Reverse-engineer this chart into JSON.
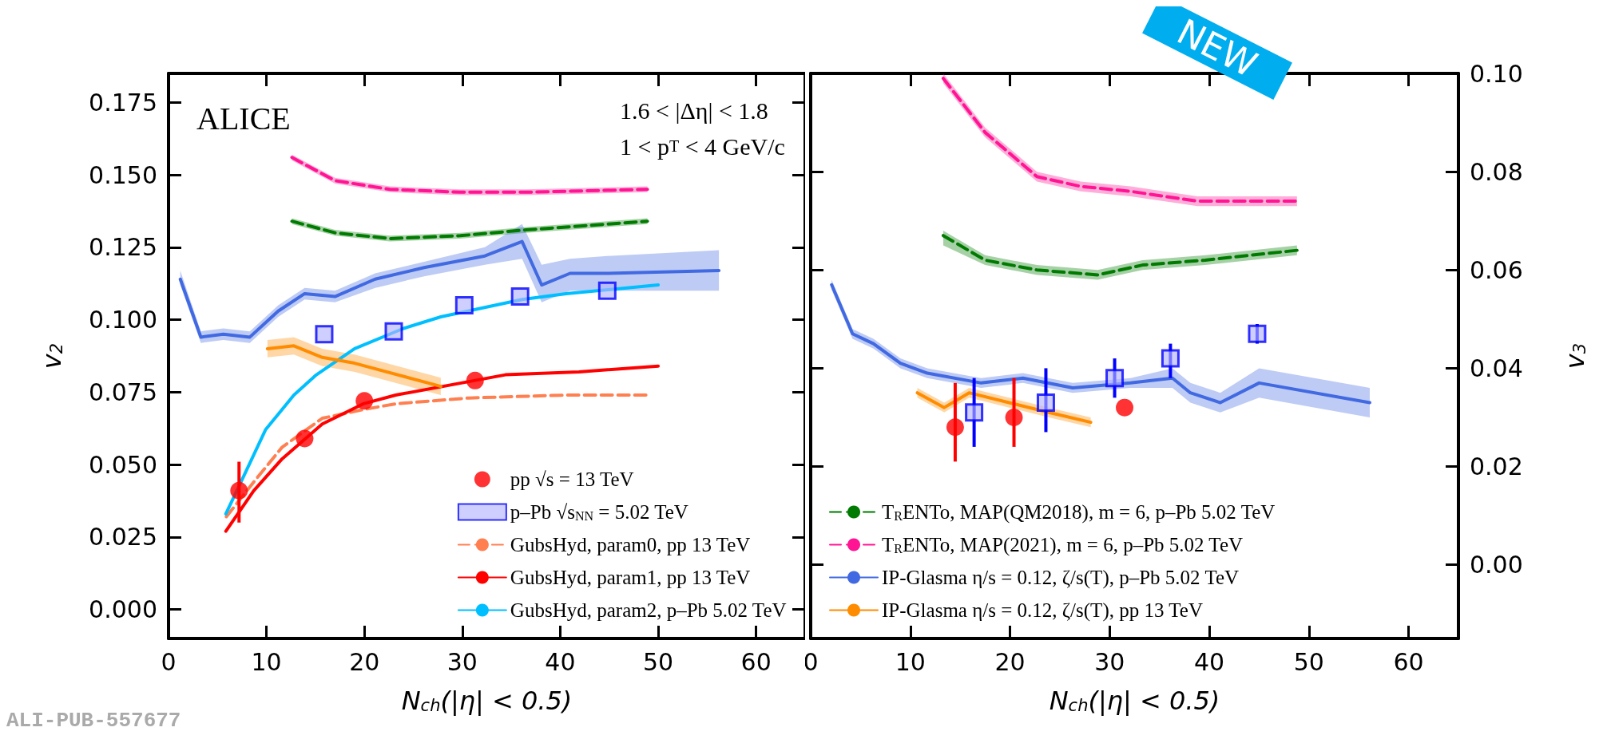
{
  "chart_data": [
    {
      "type": "line",
      "xlabel": "N$_{ch}$(|η| < 0.5)",
      "ylabel": "v$_{2}$",
      "xlim": [
        0,
        65
      ],
      "xticks": [
        0,
        10,
        20,
        30,
        40,
        50,
        60
      ],
      "ylim": [
        -0.01,
        0.185
      ],
      "yticks": [
        {
          "value": 0,
          "label": "0.000"
        },
        0.025,
        {
          "value": 0.05,
          "label": "0.050"
        },
        0.075,
        {
          "value": 0.1,
          "label": "0.100"
        },
        0.125,
        {
          "value": 0.15,
          "label": "0.150"
        },
        0.175
      ],
      "legend": "bottom right",
      "annotations": [
        "ALICE",
        "1.6 < |Δη| < 1.8",
        "1 < p$_{T}$ < 4 GeV/c",
        "ALI-PUB-557677"
      ],
      "series": [
        {
          "name": "pp √s = 13 TeV",
          "type": "scatter",
          "marker": "circle",
          "color": "#ff0000",
          "x": [
            7.2,
            13.9,
            20.0,
            31.3
          ],
          "values": [
            0.041,
            0.059,
            0.072,
            0.079
          ],
          "errors": [
            [
              0.03,
              0.051
            ],
            null,
            null,
            null
          ]
        },
        {
          "name": "p–Pb √s$_{NN}$ = 5.02 TeV",
          "type": "scatter",
          "marker": "square",
          "color": "#0000ff",
          "x": [
            15.9,
            23.0,
            30.2,
            35.9,
            44.8
          ],
          "values": [
            0.095,
            0.096,
            0.105,
            0.108,
            0.11
          ]
        },
        {
          "name": "GubsHyd, param0, pp 13 TeV",
          "type": "line",
          "marker": "none",
          "line_style": "dashed",
          "color": "#ff7f50",
          "x": [
            5.9,
            8.7,
            11.6,
            15.7,
            19.9,
            23.2,
            30.7,
            40.6,
            49.3
          ],
          "values": [
            0.032,
            0.044,
            0.056,
            0.066,
            0.069,
            0.071,
            0.073,
            0.074,
            0.074
          ]
        },
        {
          "name": "GubsHyd, param1, pp 13 TeV",
          "type": "line",
          "marker": "none",
          "line_style": "solid",
          "color": "#ff0000",
          "x": [
            5.85,
            8.7,
            11.6,
            15.7,
            19.9,
            23.2,
            34.4,
            41.9,
            50.0
          ],
          "values": [
            0.027,
            0.041,
            0.052,
            0.064,
            0.071,
            0.074,
            0.081,
            0.082,
            0.084
          ]
        },
        {
          "name": "GubsHyd, param2, p–Pb 5.02 TeV",
          "type": "line",
          "marker": "none",
          "line_style": "solid",
          "color": "#00bfff",
          "x": [
            5.85,
            7.4,
            9.9,
            12.8,
            15.1,
            19.0,
            24.0,
            27.8,
            36.1,
            40.6,
            50.0
          ],
          "values": [
            0.033,
            0.044,
            0.062,
            0.074,
            0.081,
            0.09,
            0.097,
            0.101,
            0.107,
            0.109,
            0.112
          ]
        },
        {
          "type": "line",
          "marker": "none",
          "line_style": "dashed",
          "color": "#007a00",
          "x": [
            12.6,
            17.0,
            22.6,
            29.8,
            36.5,
            48.9
          ],
          "values": [
            0.134,
            0.13,
            0.128,
            0.129,
            0.131,
            0.134
          ],
          "lower": [
            0.133,
            0.129,
            0.127,
            0.128,
            0.13,
            0.133
          ],
          "upper": [
            0.135,
            0.131,
            0.129,
            0.13,
            0.132,
            0.135
          ]
        },
        {
          "type": "line",
          "marker": "none",
          "line_style": "dashed",
          "color": "#ff1493",
          "x": [
            12.6,
            17.0,
            22.6,
            29.8,
            36.5,
            48.9
          ],
          "values": [
            0.156,
            0.148,
            0.145,
            0.144,
            0.144,
            0.145
          ],
          "lower": [
            0.155,
            0.147,
            0.144,
            0.143,
            0.143,
            0.144
          ],
          "upper": [
            0.157,
            0.149,
            0.146,
            0.145,
            0.145,
            0.146
          ]
        },
        {
          "type": "line",
          "marker": "none",
          "line_style": "solid",
          "color": "#4169e1",
          "x": [
            1.2,
            3.3,
            5.6,
            8.3,
            11.2,
            13.9,
            17.0,
            21.1,
            26.1,
            32.3,
            36.1,
            38.1,
            41.0,
            44.8,
            56.2
          ],
          "values": [
            0.114,
            0.094,
            0.095,
            0.094,
            0.103,
            0.109,
            0.108,
            0.114,
            0.118,
            0.122,
            0.127,
            0.112,
            0.116,
            0.116,
            0.117
          ],
          "lower": [
            0.112,
            0.092,
            0.093,
            0.092,
            0.101,
            0.107,
            0.106,
            0.111,
            0.115,
            0.119,
            0.121,
            0.106,
            0.11,
            0.11,
            0.11
          ],
          "upper": [
            0.117,
            0.096,
            0.097,
            0.096,
            0.105,
            0.111,
            0.11,
            0.116,
            0.12,
            0.125,
            0.133,
            0.119,
            0.121,
            0.122,
            0.124
          ]
        },
        {
          "type": "line",
          "marker": "none",
          "line_style": "solid",
          "color": "#ff8c00",
          "x": [
            10.1,
            12.8,
            15.7,
            19.0,
            27.8
          ],
          "values": [
            0.09,
            0.091,
            0.087,
            0.085,
            0.077
          ],
          "lower": [
            0.087,
            0.088,
            0.084,
            0.082,
            0.074
          ],
          "upper": [
            0.093,
            0.094,
            0.09,
            0.088,
            0.08
          ]
        }
      ]
    },
    {
      "type": "line",
      "xlabel": "N$_{ch}$(|η| < 0.5)",
      "y2label": "v$_{3}$",
      "xlim": [
        0,
        65
      ],
      "xticks": [
        0,
        10,
        20,
        30,
        40,
        50,
        60
      ],
      "y2lim": [
        -0.015,
        0.1
      ],
      "y2ticks": [
        {
          "value": 0,
          "label": "0.00"
        },
        0.02,
        0.04,
        0.06,
        0.08,
        {
          "value": 0.1,
          "label": "0.10"
        }
      ],
      "legend": "bottom left",
      "annotations": [
        "NEW"
      ],
      "series": [
        {
          "name": "T$_{R}$ENTo, MAP(QM2018), m = 6, p–Pb 5.02 TeV",
          "axis": "y2",
          "type": "line",
          "marker": "none",
          "line_style": "dashed",
          "color": "#007a00",
          "x": [
            13.3,
            17.5,
            22.7,
            28.8,
            33.3,
            39.6,
            48.8
          ],
          "values": [
            0.067,
            0.062,
            0.06,
            0.059,
            0.061,
            0.062,
            0.064
          ],
          "lower": [
            0.065,
            0.061,
            0.059,
            0.058,
            0.06,
            0.061,
            0.063
          ],
          "upper": [
            0.068,
            0.063,
            0.061,
            0.06,
            0.062,
            0.063,
            0.065
          ]
        },
        {
          "name": "T$_{R}$ENTo, MAP(2021), m = 6, p–Pb 5.02 TeV",
          "axis": "y2",
          "type": "line",
          "marker": "none",
          "line_style": "dashed",
          "color": "#ff1493",
          "x": [
            13.3,
            17.5,
            22.7,
            27.1,
            32.1,
            38.8,
            44.2,
            48.8
          ],
          "values": [
            0.099,
            0.088,
            0.079,
            0.077,
            0.076,
            0.074,
            0.074,
            0.074
          ],
          "lower": [
            0.098,
            0.087,
            0.078,
            0.076,
            0.075,
            0.073,
            0.073,
            0.073
          ],
          "upper": [
            0.1,
            0.089,
            0.08,
            0.078,
            0.077,
            0.075,
            0.075,
            0.075
          ]
        },
        {
          "name": "IP-Glasma η/s = 0.12, ζ/s(T), p–Pb 5.02 TeV",
          "axis": "y2",
          "type": "line",
          "marker": "none",
          "line_style": "solid",
          "color": "#4169e1",
          "x": [
            2.1,
            4.2,
            6.3,
            9.0,
            11.7,
            17.1,
            21.3,
            26.3,
            32.1,
            36.3,
            38.1,
            41.1,
            45.0,
            56.1
          ],
          "values": [
            0.057,
            0.047,
            0.045,
            0.041,
            0.039,
            0.037,
            0.038,
            0.036,
            0.037,
            0.038,
            0.035,
            0.033,
            0.037,
            0.033
          ],
          "lower": [
            0.056,
            0.046,
            0.044,
            0.04,
            0.038,
            0.036,
            0.037,
            0.035,
            0.036,
            0.036,
            0.033,
            0.031,
            0.034,
            0.03
          ],
          "upper": [
            0.058,
            0.048,
            0.046,
            0.042,
            0.04,
            0.038,
            0.039,
            0.037,
            0.038,
            0.04,
            0.037,
            0.035,
            0.04,
            0.036
          ]
        },
        {
          "name": "IP-Glasma η/s = 0.12, ζ/s(T), pp 13 TeV",
          "axis": "y2",
          "type": "line",
          "marker": "none",
          "line_style": "solid",
          "color": "#ff8c00",
          "x": [
            10.7,
            13.4,
            15.9,
            19.9,
            23.9,
            28.1
          ],
          "values": [
            0.035,
            0.032,
            0.035,
            0.033,
            0.031,
            0.029
          ],
          "lower": [
            0.034,
            0.031,
            0.034,
            0.032,
            0.03,
            0.028
          ],
          "upper": [
            0.036,
            0.033,
            0.036,
            0.034,
            0.032,
            0.03
          ]
        },
        {
          "axis": "y2",
          "type": "scatter",
          "marker": "circle",
          "color": "#ff0000",
          "x": [
            14.5,
            20.4,
            31.5
          ],
          "values": [
            0.028,
            0.03,
            0.032
          ],
          "errors": [
            [
              0.021,
              0.037
            ],
            [
              0.024,
              0.038
            ],
            null
          ]
        },
        {
          "axis": "y2",
          "type": "scatter",
          "marker": "square",
          "color": "#0000ff",
          "x": [
            16.4,
            23.6,
            30.5,
            36.1,
            44.8
          ],
          "values": [
            0.031,
            0.033,
            0.038,
            0.042,
            0.047
          ],
          "errors": [
            [
              0.024,
              0.038
            ],
            [
              0.027,
              0.04
            ],
            [
              0.034,
              0.042
            ],
            [
              0.038,
              0.045
            ],
            [
              0.045,
              0.049
            ]
          ]
        }
      ]
    }
  ]
}
